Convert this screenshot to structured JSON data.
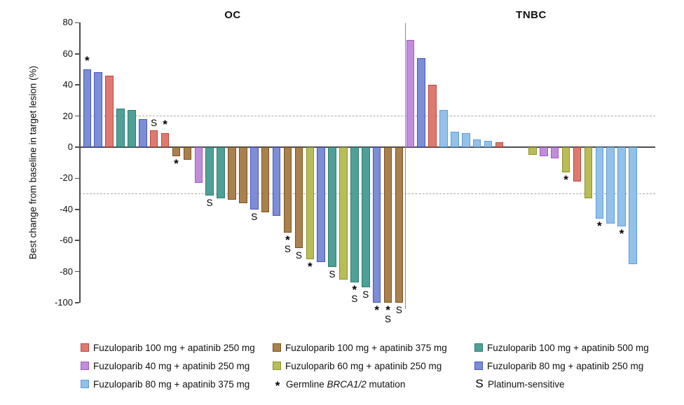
{
  "figure": {
    "y_axis_label": "Best change from baseline in target lesion (%)"
  },
  "treatments": {
    "fz100ap250": {
      "label": "Fuzuloparib 100 mg + apatinib 250 mg",
      "fill": "#DE7A70",
      "border": "#C0443C"
    },
    "fz40ap250": {
      "label": "Fuzuloparib 40 mg + apatinib 250 mg",
      "fill": "#C28CDB",
      "border": "#A159C4"
    },
    "fz80ap375": {
      "label": "Fuzuloparib 80 mg + apatinib 375 mg",
      "fill": "#93C1E9",
      "border": "#5C9CD8"
    },
    "fz100ap375": {
      "label": "Fuzuloparib 100 mg + apatinib 375 mg",
      "fill": "#A9804E",
      "border": "#7B5418"
    },
    "fz60ap250": {
      "label": "Fuzuloparib 60 mg + apatinib 250 mg",
      "fill": "#B9BD57",
      "border": "#8D9226"
    },
    "fz100ap500": {
      "label": "Fuzuloparib 100 mg + apatinib 500 mg",
      "fill": "#4FA096",
      "border": "#2B7C72"
    },
    "fz80ap250": {
      "label": "Fuzuloparib 80 mg + apatinib 250 mg",
      "fill": "#7B8ED6",
      "border": "#4A52C8"
    }
  },
  "chart_data": {
    "type": "bar",
    "title": "",
    "ylabel": "Best change from baseline in target lesion (%)",
    "ylim": [
      -100,
      80
    ],
    "yticks": [
      80,
      60,
      40,
      20,
      0,
      -20,
      -40,
      -60,
      -80,
      -100
    ],
    "reference_lines": [
      20,
      -30
    ],
    "grid": false,
    "legend_position": "bottom",
    "marker_meanings": {
      "*": "Germline BRCA1/2 mutation",
      "S": "Platinum-sensitive"
    },
    "panels": [
      {
        "title": "OC",
        "bars": [
          {
            "value": 50,
            "treatment": "fz80ap250",
            "brca_mutation": true,
            "platinum_sensitive": false
          },
          {
            "value": 48,
            "treatment": "fz80ap250",
            "brca_mutation": false,
            "platinum_sensitive": false
          },
          {
            "value": 46,
            "treatment": "fz100ap250",
            "brca_mutation": false,
            "platinum_sensitive": false
          },
          {
            "value": 25,
            "treatment": "fz100ap500",
            "brca_mutation": false,
            "platinum_sensitive": false
          },
          {
            "value": 24,
            "treatment": "fz100ap500",
            "brca_mutation": false,
            "platinum_sensitive": false
          },
          {
            "value": 18,
            "treatment": "fz80ap250",
            "brca_mutation": false,
            "platinum_sensitive": false
          },
          {
            "value": 11,
            "treatment": "fz100ap250",
            "brca_mutation": false,
            "platinum_sensitive": true
          },
          {
            "value": 9,
            "treatment": "fz100ap250",
            "brca_mutation": true,
            "platinum_sensitive": false
          },
          {
            "value": -6,
            "treatment": "fz100ap375",
            "brca_mutation": true,
            "platinum_sensitive": false
          },
          {
            "value": -8,
            "treatment": "fz100ap375",
            "brca_mutation": false,
            "platinum_sensitive": false
          },
          {
            "value": -23,
            "treatment": "fz40ap250",
            "brca_mutation": false,
            "platinum_sensitive": false
          },
          {
            "value": -31,
            "treatment": "fz100ap500",
            "brca_mutation": false,
            "platinum_sensitive": true
          },
          {
            "value": -33,
            "treatment": "fz100ap500",
            "brca_mutation": false,
            "platinum_sensitive": false
          },
          {
            "value": -34,
            "treatment": "fz100ap375",
            "brca_mutation": false,
            "platinum_sensitive": false
          },
          {
            "value": -36,
            "treatment": "fz100ap375",
            "brca_mutation": false,
            "platinum_sensitive": false
          },
          {
            "value": -40,
            "treatment": "fz80ap250",
            "brca_mutation": false,
            "platinum_sensitive": true
          },
          {
            "value": -42,
            "treatment": "fz100ap375",
            "brca_mutation": false,
            "platinum_sensitive": false
          },
          {
            "value": -44,
            "treatment": "fz80ap250",
            "brca_mutation": false,
            "platinum_sensitive": false
          },
          {
            "value": -55,
            "treatment": "fz100ap375",
            "brca_mutation": true,
            "platinum_sensitive": true
          },
          {
            "value": -65,
            "treatment": "fz100ap375",
            "brca_mutation": false,
            "platinum_sensitive": true
          },
          {
            "value": -72,
            "treatment": "fz60ap250",
            "brca_mutation": true,
            "platinum_sensitive": false
          },
          {
            "value": -74,
            "treatment": "fz80ap250",
            "brca_mutation": false,
            "platinum_sensitive": false
          },
          {
            "value": -77,
            "treatment": "fz100ap500",
            "brca_mutation": false,
            "platinum_sensitive": true
          },
          {
            "value": -85,
            "treatment": "fz60ap250",
            "brca_mutation": false,
            "platinum_sensitive": false
          },
          {
            "value": -87,
            "treatment": "fz100ap500",
            "brca_mutation": true,
            "platinum_sensitive": true
          },
          {
            "value": -90,
            "treatment": "fz100ap500",
            "brca_mutation": false,
            "platinum_sensitive": true
          },
          {
            "value": -100,
            "treatment": "fz80ap250",
            "brca_mutation": true,
            "platinum_sensitive": false
          },
          {
            "value": -100,
            "treatment": "fz100ap375",
            "brca_mutation": true,
            "platinum_sensitive": true
          },
          {
            "value": -100,
            "treatment": "fz100ap375",
            "brca_mutation": false,
            "platinum_sensitive": true
          }
        ]
      },
      {
        "title": "TNBC",
        "bars": [
          {
            "value": 69,
            "treatment": "fz40ap250",
            "brca_mutation": false,
            "platinum_sensitive": false
          },
          {
            "value": 57,
            "treatment": "fz80ap250",
            "brca_mutation": false,
            "platinum_sensitive": false
          },
          {
            "value": 40,
            "treatment": "fz100ap250",
            "brca_mutation": false,
            "platinum_sensitive": false
          },
          {
            "value": 24,
            "treatment": "fz80ap375",
            "brca_mutation": false,
            "platinum_sensitive": false
          },
          {
            "value": 10,
            "treatment": "fz80ap375",
            "brca_mutation": false,
            "platinum_sensitive": false
          },
          {
            "value": 9,
            "treatment": "fz80ap375",
            "brca_mutation": false,
            "platinum_sensitive": false
          },
          {
            "value": 5,
            "treatment": "fz80ap375",
            "brca_mutation": false,
            "platinum_sensitive": false
          },
          {
            "value": 4,
            "treatment": "fz80ap375",
            "brca_mutation": false,
            "platinum_sensitive": false
          },
          {
            "value": 3,
            "treatment": "fz100ap250",
            "brca_mutation": false,
            "platinum_sensitive": false
          },
          {
            "value": -5,
            "treatment": "fz60ap250",
            "brca_mutation": false,
            "platinum_sensitive": false,
            "gap_before": true
          },
          {
            "value": -6,
            "treatment": "fz40ap250",
            "brca_mutation": false,
            "platinum_sensitive": false
          },
          {
            "value": -7,
            "treatment": "fz40ap250",
            "brca_mutation": false,
            "platinum_sensitive": false
          },
          {
            "value": -16,
            "treatment": "fz60ap250",
            "brca_mutation": true,
            "platinum_sensitive": false
          },
          {
            "value": -22,
            "treatment": "fz100ap250",
            "brca_mutation": false,
            "platinum_sensitive": false
          },
          {
            "value": -33,
            "treatment": "fz60ap250",
            "brca_mutation": false,
            "platinum_sensitive": false
          },
          {
            "value": -46,
            "treatment": "fz80ap375",
            "brca_mutation": true,
            "platinum_sensitive": false
          },
          {
            "value": -49,
            "treatment": "fz80ap375",
            "brca_mutation": false,
            "platinum_sensitive": false
          },
          {
            "value": -51,
            "treatment": "fz80ap375",
            "brca_mutation": true,
            "platinum_sensitive": false
          },
          {
            "value": -75,
            "treatment": "fz80ap375",
            "brca_mutation": false,
            "platinum_sensitive": false
          }
        ]
      }
    ]
  },
  "legend": {
    "columns": [
      {
        "items": [
          {
            "type": "swatch",
            "color_key": "fz100ap250",
            "label": "Fuzuloparib 100 mg + apatinib 250 mg"
          },
          {
            "type": "swatch",
            "color_key": "fz40ap250",
            "label": "Fuzuloparib 40 mg + apatinib 250 mg"
          },
          {
            "type": "swatch",
            "color_key": "fz80ap375",
            "label": "Fuzuloparib 80 mg + apatinib 375 mg"
          }
        ]
      },
      {
        "items": [
          {
            "type": "swatch",
            "color_key": "fz100ap375",
            "label": "Fuzuloparib 100 mg + apatinib 375 mg"
          },
          {
            "type": "swatch",
            "color_key": "fz60ap250",
            "label": "Fuzuloparib 60 mg + apatinib 250 mg"
          },
          {
            "type": "symbol",
            "symbol": "*",
            "label_pre": "Germline ",
            "label_italic": "BRCA1/2",
            "label_post": " mutation"
          }
        ]
      },
      {
        "items": [
          {
            "type": "swatch",
            "color_key": "fz100ap500",
            "label": "Fuzuloparib 100 mg + apatinib 500 mg"
          },
          {
            "type": "swatch",
            "color_key": "fz80ap250",
            "label": "Fuzuloparib 80 mg + apatinib 250 mg"
          },
          {
            "type": "symbol",
            "symbol": "S",
            "label_pre": "Platinum-sensitive",
            "label_italic": "",
            "label_post": ""
          }
        ]
      }
    ]
  }
}
